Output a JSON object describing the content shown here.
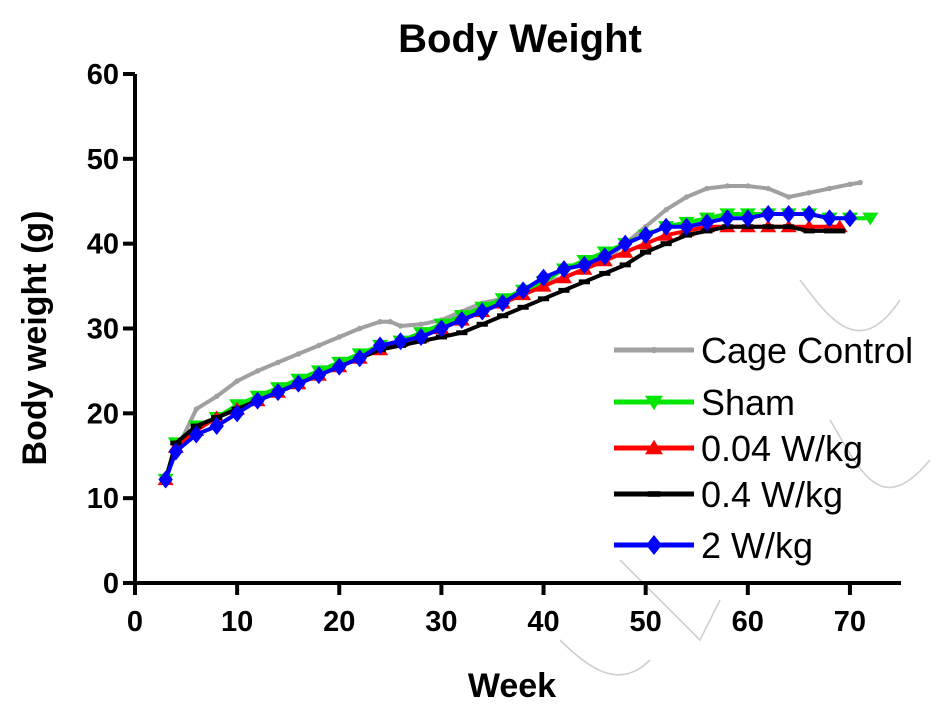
{
  "chart_data": {
    "type": "line",
    "title": "Body Weight",
    "xlabel": "Week",
    "ylabel": "Body weight (g)",
    "xlim": [
      0,
      75
    ],
    "ylim": [
      0,
      60
    ],
    "x_ticks": [
      0,
      10,
      20,
      30,
      40,
      50,
      60,
      70
    ],
    "y_ticks": [
      0,
      10,
      20,
      30,
      40,
      50,
      60
    ],
    "grid": false,
    "legend_position": "right",
    "series": [
      {
        "name": "Cage Control",
        "color": "#a0a0a0",
        "marker": "circle",
        "x": [
          3,
          4,
          6,
          8,
          10,
          12,
          14,
          16,
          18,
          20,
          22,
          24,
          25,
          26,
          28,
          30,
          32,
          34,
          36,
          38,
          40,
          42,
          44,
          46,
          48,
          50,
          52,
          54,
          56,
          58,
          60,
          62,
          64,
          66,
          68,
          70,
          71
        ],
        "y": [
          12.2,
          15.5,
          20.5,
          22.0,
          23.8,
          25.0,
          26.0,
          27.0,
          28.0,
          29.0,
          30.0,
          30.8,
          30.8,
          30.3,
          30.5,
          31.0,
          32.0,
          33.0,
          33.5,
          34.5,
          35.5,
          36.0,
          37.0,
          38.0,
          40.0,
          42.0,
          44.0,
          45.5,
          46.5,
          46.8,
          46.8,
          46.5,
          45.5,
          46.0,
          46.5,
          47.0,
          47.2
        ]
      },
      {
        "name": "Sham",
        "color": "#00e600",
        "marker": "triangle-down",
        "x": [
          3,
          4,
          6,
          8,
          10,
          12,
          14,
          16,
          18,
          20,
          22,
          24,
          26,
          28,
          30,
          32,
          34,
          36,
          38,
          40,
          42,
          44,
          46,
          48,
          50,
          52,
          54,
          56,
          58,
          60,
          62,
          64,
          66,
          68,
          70,
          72
        ],
        "y": [
          12.2,
          16.5,
          18.5,
          19.5,
          21.0,
          22.0,
          23.0,
          24.0,
          25.0,
          26.0,
          27.0,
          28.0,
          28.5,
          29.5,
          30.5,
          31.5,
          32.5,
          33.5,
          34.5,
          35.5,
          37.0,
          38.0,
          39.0,
          40.0,
          41.0,
          42.0,
          42.5,
          43.0,
          43.5,
          43.5,
          43.5,
          43.5,
          43.5,
          43.0,
          43.0,
          43.0
        ]
      },
      {
        "name": "0.04 W/kg",
        "color": "#ff0000",
        "marker": "triangle-up",
        "x": [
          3,
          4,
          6,
          8,
          10,
          12,
          14,
          16,
          18,
          20,
          22,
          24,
          26,
          28,
          30,
          32,
          34,
          36,
          38,
          40,
          42,
          44,
          46,
          48,
          50,
          52,
          54,
          56,
          58,
          60,
          62,
          64,
          66,
          68,
          69
        ],
        "y": [
          12.2,
          16.0,
          18.0,
          19.5,
          20.5,
          21.5,
          22.5,
          23.5,
          24.5,
          25.5,
          26.5,
          27.5,
          28.5,
          29.0,
          30.0,
          31.0,
          32.0,
          33.0,
          34.0,
          35.0,
          36.0,
          37.0,
          38.0,
          39.0,
          40.0,
          41.0,
          41.5,
          42.0,
          42.0,
          42.0,
          42.0,
          42.0,
          42.0,
          42.0,
          42.0
        ]
      },
      {
        "name": "0.4 W/kg",
        "color": "#000000",
        "marker": "dash",
        "x": [
          3,
          4,
          6,
          8,
          10,
          12,
          14,
          16,
          18,
          20,
          22,
          24,
          26,
          28,
          30,
          32,
          34,
          36,
          38,
          40,
          42,
          44,
          46,
          48,
          50,
          52,
          54,
          56,
          58,
          60,
          62,
          64,
          66,
          68,
          69
        ],
        "y": [
          12.2,
          16.5,
          18.5,
          19.5,
          20.5,
          21.5,
          22.5,
          23.5,
          24.5,
          25.5,
          26.5,
          27.5,
          28.0,
          28.5,
          29.0,
          29.5,
          30.5,
          31.5,
          32.5,
          33.5,
          34.5,
          35.5,
          36.5,
          37.5,
          39.0,
          40.0,
          41.0,
          41.5,
          42.0,
          42.0,
          42.0,
          42.0,
          41.5,
          41.5,
          41.5
        ]
      },
      {
        "name": "2 W/kg",
        "color": "#0000ff",
        "marker": "diamond",
        "x": [
          3,
          4,
          6,
          8,
          10,
          12,
          14,
          16,
          18,
          20,
          22,
          24,
          26,
          28,
          30,
          32,
          34,
          36,
          38,
          40,
          42,
          44,
          46,
          48,
          50,
          52,
          54,
          56,
          58,
          60,
          62,
          64,
          66,
          68,
          70
        ],
        "y": [
          12.2,
          15.5,
          17.5,
          18.5,
          20.0,
          21.5,
          22.5,
          23.5,
          24.5,
          25.5,
          26.5,
          28.0,
          28.5,
          29.0,
          30.0,
          31.0,
          32.0,
          33.0,
          34.5,
          36.0,
          37.0,
          37.5,
          38.5,
          40.0,
          41.0,
          42.0,
          42.0,
          42.5,
          43.0,
          43.0,
          43.5,
          43.5,
          43.5,
          43.0,
          43.0
        ]
      }
    ]
  }
}
